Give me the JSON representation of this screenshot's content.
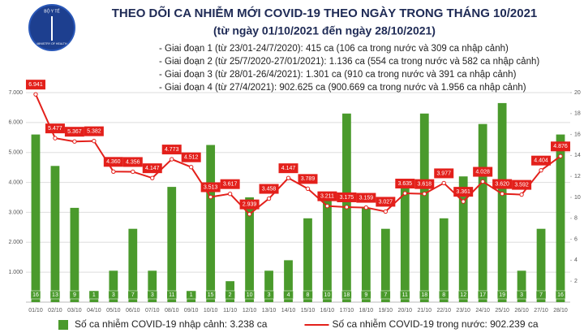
{
  "chart_data": {
    "type": "bar_line",
    "title": "THEO DÕI CA NHIỄM MỚI COVID-19 THEO NGÀY TRONG THÁNG 10/2021",
    "subtitle": "(từ ngày 01/10/2021 đến ngày 28/10/2021)",
    "logo": {
      "top": "BỘ Y TẾ",
      "bottom": "MINISTRY OF HEALTH"
    },
    "notes": [
      "- Giai đoạn 1 (từ 23/01-24/7/2020): 415 ca (106 ca trong nước và 309 ca nhập cảnh)",
      "- Giai đoạn 2 (từ 25/7/2020-27/01/2021): 1.136 ca (554 ca trong nước và 582 ca nhập cảnh)",
      "- Giai đoạn 3 (từ 28/01-26/4/2021): 1.301 ca (910 ca trong nước và 391 ca nhập cảnh)",
      "- Giai đoạn 4 (từ 27/4/2021): 902.625 ca (900.669 ca trong nước và 1.956 ca nhập cảnh)"
    ],
    "categories": [
      "01/10",
      "02/10",
      "03/10",
      "04/10",
      "05/10",
      "06/10",
      "07/10",
      "08/10",
      "09/10",
      "10/10",
      "11/10",
      "12/10",
      "13/10",
      "14/10",
      "15/10",
      "16/10",
      "17/10",
      "18/10",
      "19/10",
      "20/10",
      "21/10",
      "22/10",
      "23/10",
      "24/10",
      "25/10",
      "26/10",
      "27/10",
      "28/10"
    ],
    "series": [
      {
        "name": "Số ca nhiễm COVID-19 nhập cảnh: 3.238 ca",
        "color": "#4a9a2c",
        "type": "bar",
        "axis": "y2",
        "values": [
          16,
          13,
          9,
          1,
          3,
          7,
          3,
          11,
          1,
          15,
          2,
          10,
          3,
          4,
          8,
          10,
          18,
          9,
          7,
          11,
          18,
          8,
          12,
          17,
          19,
          3,
          7,
          16
        ]
      },
      {
        "name": "Số ca nhiễm COVID-19 trong nước: 902.239 ca",
        "color": "#e3201b",
        "type": "line",
        "values": [
          6941,
          5477,
          5367,
          5382,
          4360,
          4356,
          4147,
          4773,
          4512,
          3513,
          3617,
          2939,
          3458,
          4147,
          3789,
          3211,
          3175,
          3159,
          3027,
          3635,
          3618,
          3977,
          3361,
          4028,
          3620,
          3592,
          4404,
          4876
        ],
        "value_labels": [
          "6.941",
          "5.477",
          "5.367",
          "5.382",
          "4.360",
          "4.356",
          "4.147",
          "4.773",
          "4.512",
          "3.513",
          "3.617",
          "2.939",
          "3.458",
          "4.147",
          "3.789",
          "3.211",
          "3.175",
          "3.159",
          "3.027",
          "3.635",
          "3.618",
          "3.977",
          "3.361",
          "4.028",
          "3.620",
          "3.592",
          "4.404",
          "4.876"
        ]
      }
    ],
    "ylim": [
      0,
      7000
    ],
    "yticks": [
      {
        "value": 1000,
        "label": "1.000"
      },
      {
        "value": 2000,
        "label": "2.000"
      },
      {
        "value": 3000,
        "label": "3.000"
      },
      {
        "value": 4000,
        "label": "4.000"
      },
      {
        "value": 5000,
        "label": "5.000"
      },
      {
        "value": 6000,
        "label": "6.000"
      },
      {
        "value": 7000,
        "label": "7.000"
      }
    ],
    "y2lim": [
      0,
      20
    ],
    "y2ticks": [
      2,
      4,
      6,
      8,
      10,
      12,
      14,
      16,
      18,
      20
    ],
    "grid": true,
    "legend": "bottom"
  }
}
